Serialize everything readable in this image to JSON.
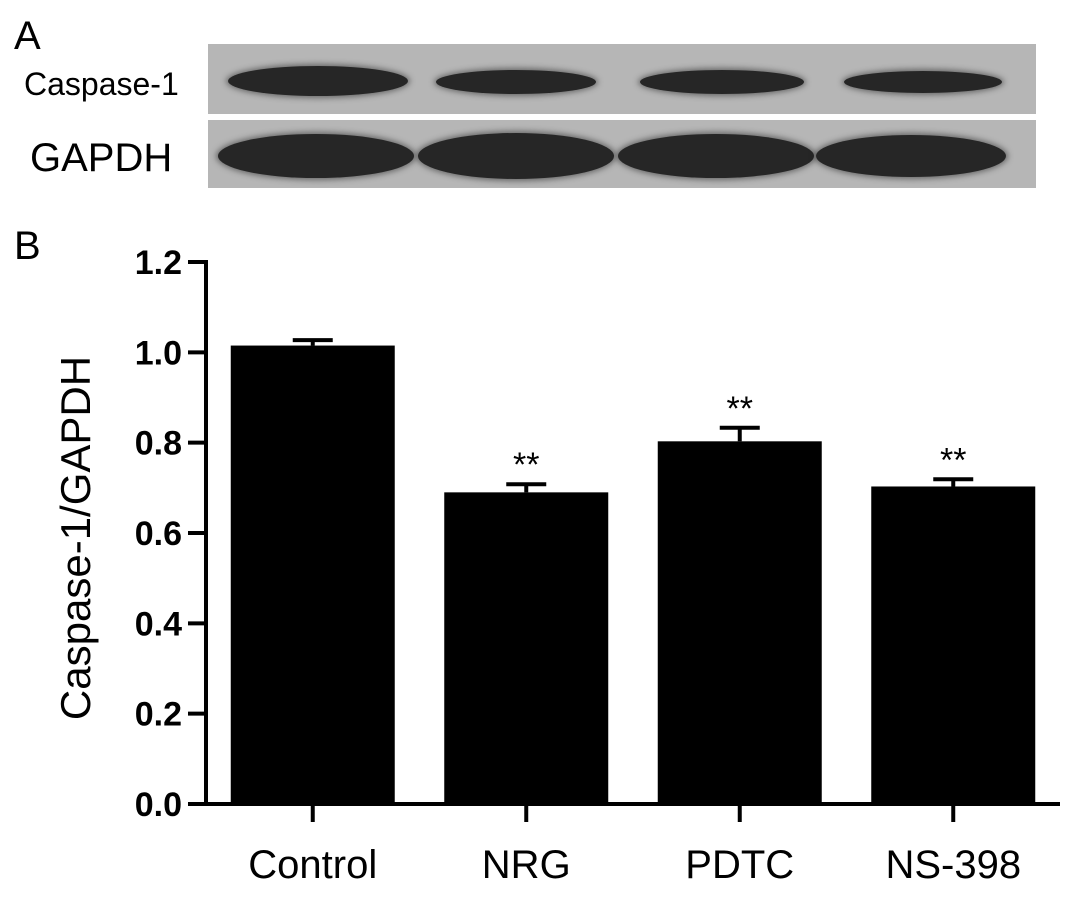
{
  "panels": {
    "a": "A",
    "b": "B"
  },
  "blot": {
    "rows": [
      {
        "label": "Caspase-1",
        "band_color": "#262626"
      },
      {
        "label": "GAPDH",
        "band_color": "#262626"
      }
    ],
    "background": "#b6b6b6"
  },
  "chart_data": {
    "type": "bar",
    "categories": [
      "Control",
      "NRG",
      "PDTC",
      "NS-398"
    ],
    "values": [
      1.015,
      0.69,
      0.803,
      0.703
    ],
    "errors": [
      0.012,
      0.018,
      0.03,
      0.016
    ],
    "annotations": [
      "",
      "**",
      "**",
      "**"
    ],
    "title": "",
    "xlabel": "",
    "ylabel": "Caspase-1/GAPDH",
    "ylim": [
      0,
      1.2
    ],
    "yticks": [
      0.0,
      0.2,
      0.4,
      0.6,
      0.8,
      1.0,
      1.2
    ],
    "ytick_labels": [
      "0.0",
      "0.2",
      "0.4",
      "0.6",
      "0.8",
      "1.0",
      "1.2"
    ],
    "bar_color": "#000000",
    "grid": false,
    "legend": "none"
  }
}
